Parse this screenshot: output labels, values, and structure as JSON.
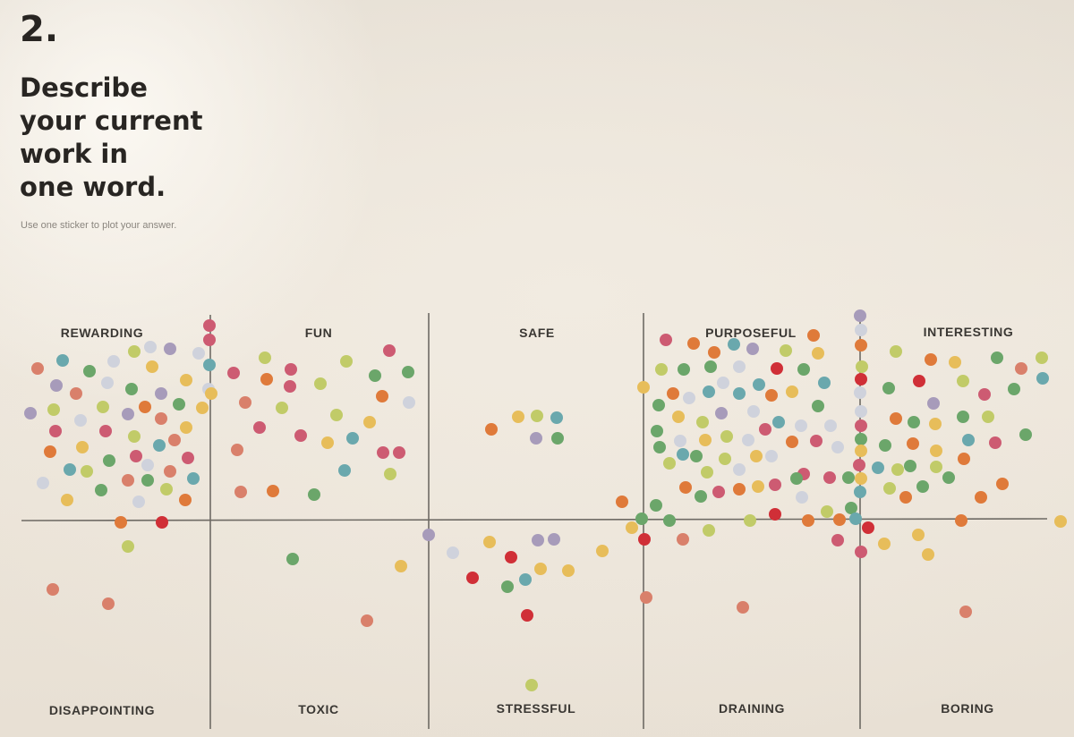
{
  "heading": {
    "number": "2.",
    "question_lines": [
      "Describe",
      "your current",
      "work in",
      "one word."
    ],
    "instruction": "Use one sticker to plot your answer."
  },
  "labels": {
    "top": [
      "REWARDING",
      "FUN",
      "SAFE",
      "PURPOSEFUL",
      "INTERESTING"
    ],
    "bottom": [
      "DISAPPOINTING",
      "TOXIC",
      "STRESSFUL",
      "DRAINING",
      "BORING"
    ]
  },
  "sticker_colors": {
    "pink": "#cd5b72",
    "red": "#d02f37",
    "orange": "#df7a3a",
    "salmon": "#d9806b",
    "yellow": "#e7bd5a",
    "lime": "#c1cb68",
    "green": "#6ba66a",
    "teal": "#6aa8ad",
    "lavender": "#a79bba",
    "silver": "#cfd2dc"
  },
  "background_color": "#ece5da",
  "line_color": "#6e6a64"
}
